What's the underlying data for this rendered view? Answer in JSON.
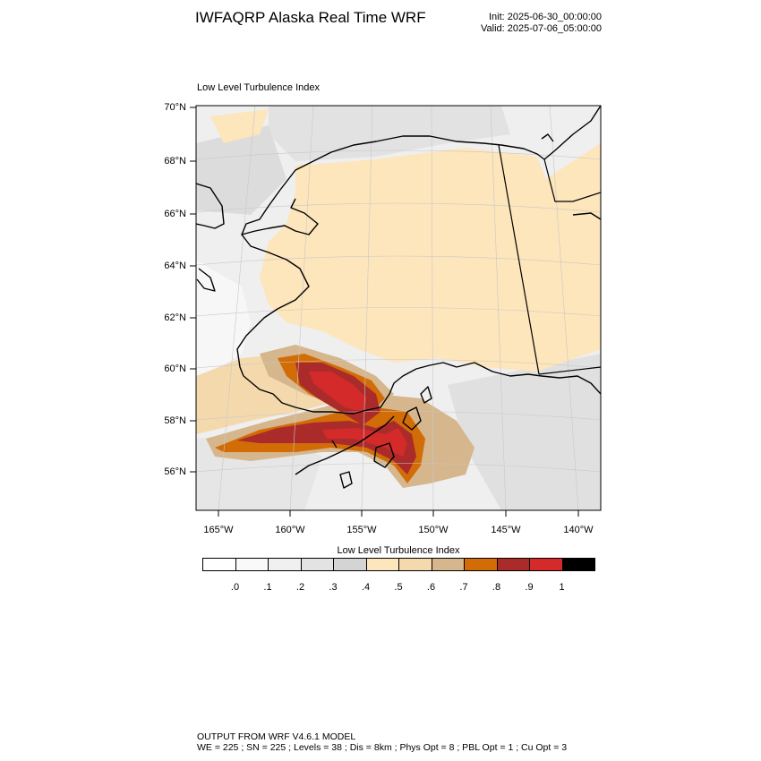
{
  "header": {
    "title": "IWFAQRP Alaska Real Time WRF",
    "init": "Init: 2025-06-30_00:00:00",
    "valid": "Valid: 2025-07-06_05:00:00"
  },
  "plot": {
    "title": "Low Level Turbulence Index",
    "lat_labels": [
      "70°N",
      "68°N",
      "66°N",
      "64°N",
      "62°N",
      "60°N",
      "58°N",
      "56°N"
    ],
    "lon_labels": [
      "165°W",
      "160°W",
      "155°W",
      "150°W",
      "145°W",
      "140°W"
    ]
  },
  "colorbar": {
    "title": "Low Level Turbulence Index",
    "colors": [
      "#ffffff",
      "#f9f9f9",
      "#f0f0f0",
      "#e3e3e3",
      "#d4d4d4",
      "#fde5bc",
      "#f4d9ad",
      "#d6b68c",
      "#d26c06",
      "#ab2b2b",
      "#d42a2a",
      "#000000"
    ],
    "labels": [
      ".0",
      ".1",
      ".2",
      ".3",
      ".4",
      ".5",
      ".6",
      ".7",
      ".8",
      ".9",
      "1"
    ]
  },
  "footer": {
    "line1": "OUTPUT FROM WRF V4.6.1 MODEL",
    "line2": "WE = 225 ; SN = 225 ; Levels = 38 ; Dis = 8km ; Phys Opt = 8 ; PBL Opt = 1 ; Cu Opt = 3"
  }
}
